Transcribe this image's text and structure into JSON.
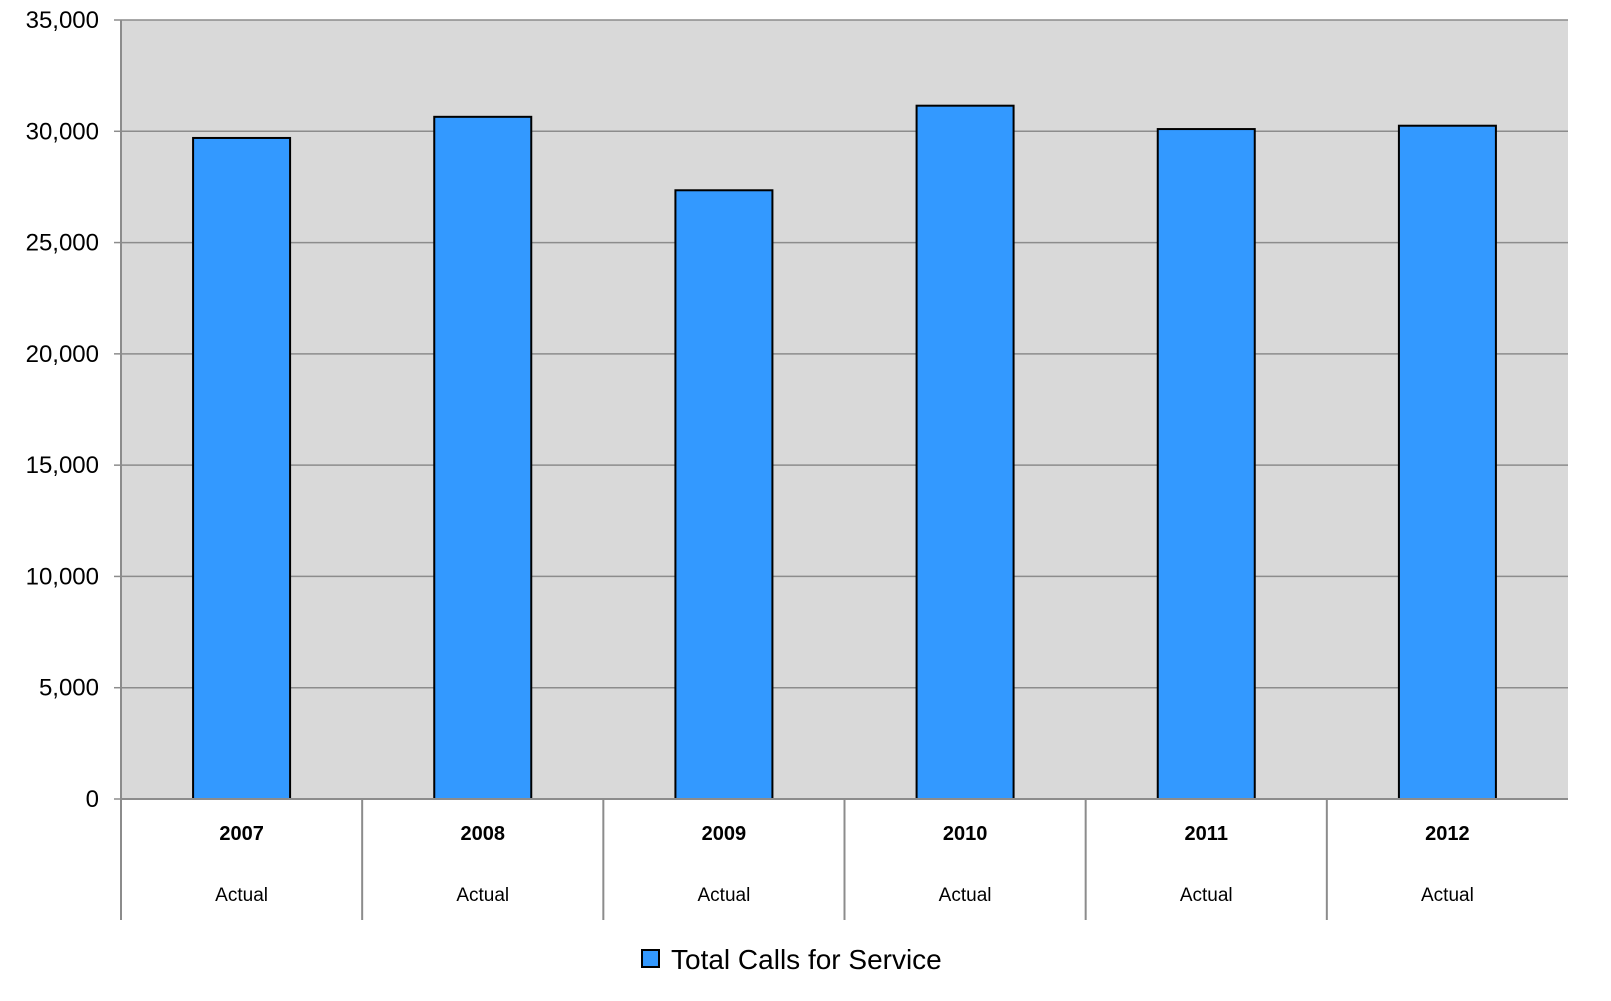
{
  "chart_data": {
    "type": "bar",
    "categories": [
      "2007",
      "2008",
      "2009",
      "2010",
      "2011",
      "2012"
    ],
    "category_sublabels": [
      "Actual",
      "Actual",
      "Actual",
      "Actual",
      "Actual",
      "Actual"
    ],
    "series": [
      {
        "name": "Total Calls for Service",
        "values": [
          29700,
          30650,
          27350,
          31150,
          30100,
          30250
        ]
      }
    ],
    "ylim": [
      0,
      35000
    ],
    "yticks": [
      0,
      5000,
      10000,
      15000,
      20000,
      25000,
      30000,
      35000
    ],
    "ytick_labels": [
      "0",
      "5,000",
      "10,000",
      "15,000",
      "20,000",
      "25,000",
      "30,000",
      "35,000"
    ],
    "title": "",
    "xlabel": "",
    "ylabel": "",
    "grid": true,
    "legend_position": "bottom-center",
    "colors": {
      "bar_fill": "#3399ff",
      "bar_stroke": "#000000",
      "plot_background": "#d9d9d9",
      "gridline": "#8c8c8c",
      "axis": "#8c8c8c"
    }
  }
}
